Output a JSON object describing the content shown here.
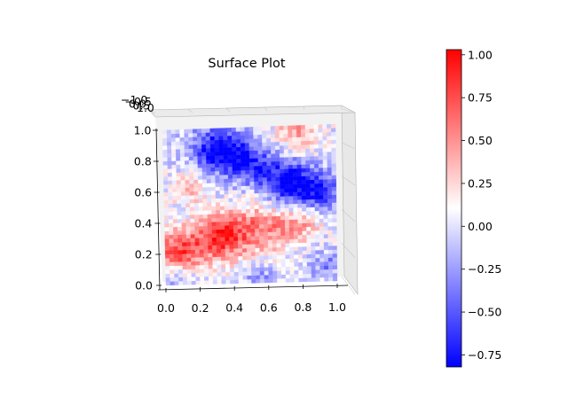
{
  "chart_data": {
    "type": "heatmap",
    "title": "Surface Plot",
    "x_ticks": [
      "0.0",
      "0.2",
      "0.4",
      "0.6",
      "0.8",
      "1.0"
    ],
    "y_ticks": [
      "0.0",
      "0.2",
      "0.4",
      "0.6",
      "0.8",
      "1.0"
    ],
    "z_ticks": [
      "−1.0",
      "−0.5",
      "0.0",
      "0.5",
      "1.0"
    ],
    "colorbar": {
      "colormap": "bwr",
      "vmin": -0.82,
      "vmax": 1.03,
      "ticks": [
        "−0.75",
        "−0.50",
        "−0.25",
        "0.00",
        "0.25",
        "0.50",
        "0.75",
        "1.00"
      ],
      "tick_values": [
        -0.75,
        -0.5,
        -0.25,
        0.0,
        0.25,
        0.5,
        0.75,
        1.0
      ]
    },
    "surface": {
      "x_range": [
        0,
        1
      ],
      "y_range": [
        0,
        1
      ],
      "grid": 40,
      "features": [
        {
          "x": 0.3,
          "y": 0.87,
          "amp": -0.75,
          "sigma": 0.1
        },
        {
          "x": 0.45,
          "y": 0.8,
          "amp": -0.6,
          "sigma": 0.09
        },
        {
          "x": 0.75,
          "y": 0.62,
          "amp": -0.8,
          "sigma": 0.1
        },
        {
          "x": 0.92,
          "y": 0.58,
          "amp": -0.6,
          "sigma": 0.08
        },
        {
          "x": 0.6,
          "y": 0.72,
          "amp": -0.4,
          "sigma": 0.1
        },
        {
          "x": 0.08,
          "y": 0.22,
          "amp": 0.75,
          "sigma": 0.1
        },
        {
          "x": 0.32,
          "y": 0.3,
          "amp": 0.85,
          "sigma": 0.1
        },
        {
          "x": 0.55,
          "y": 0.35,
          "amp": 0.55,
          "sigma": 0.12
        },
        {
          "x": 0.78,
          "y": 0.38,
          "amp": 0.4,
          "sigma": 0.09
        },
        {
          "x": 0.78,
          "y": 0.95,
          "amp": 0.45,
          "sigma": 0.09
        },
        {
          "x": 0.15,
          "y": 0.62,
          "amp": 0.3,
          "sigma": 0.08
        },
        {
          "x": 0.95,
          "y": 0.1,
          "amp": -0.3,
          "sigma": 0.07
        },
        {
          "x": 0.05,
          "y": 0.02,
          "amp": -0.3,
          "sigma": 0.07
        },
        {
          "x": 0.55,
          "y": 0.05,
          "amp": -0.25,
          "sigma": 0.07
        }
      ],
      "noise": 0.22
    }
  }
}
